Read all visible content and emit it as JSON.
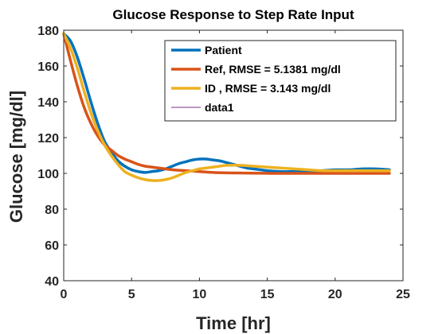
{
  "chart_data": {
    "type": "line",
    "title": "Glucose Response to Step Rate Input",
    "xlabel": "Time [hr]",
    "ylabel": "Glucose [mg/dl]",
    "xlim": [
      0,
      25
    ],
    "ylim": [
      40,
      180
    ],
    "xticks": [
      0,
      5,
      10,
      15,
      20,
      25
    ],
    "yticks": [
      40,
      60,
      80,
      100,
      120,
      140,
      160,
      180
    ],
    "grid": false,
    "legend_position": "top-right",
    "series": [
      {
        "name": "Patient",
        "color": "#0072BD",
        "width": 3.5,
        "x": [
          0,
          0.5,
          1,
          1.5,
          2,
          2.5,
          3,
          3.5,
          4,
          4.5,
          5,
          5.5,
          6,
          6.5,
          7,
          7.5,
          8,
          8.5,
          9,
          9.5,
          10,
          10.5,
          11,
          11.5,
          12,
          12.5,
          13,
          13.5,
          14,
          15,
          16,
          17,
          18,
          19,
          20,
          21,
          22,
          23,
          24
        ],
        "y": [
          178,
          174,
          165,
          153,
          140,
          128,
          118,
          112,
          107,
          104,
          102,
          101,
          100.5,
          101,
          101.5,
          102.5,
          104,
          105.5,
          106.5,
          107.5,
          108,
          108,
          107.5,
          107,
          106,
          105,
          104,
          103,
          102.5,
          101.5,
          101,
          101,
          101,
          101.5,
          102,
          102,
          102.5,
          102.5,
          102
        ]
      },
      {
        "name": "Ref, RMSE = 5.1381 mg/dl",
        "color": "#D95319",
        "width": 3.5,
        "x": [
          0,
          0.5,
          1,
          1.5,
          2,
          2.5,
          3,
          3.5,
          4,
          4.5,
          5,
          5.5,
          6,
          6.5,
          7,
          8,
          9,
          10,
          11,
          12,
          13,
          14,
          16,
          18,
          20,
          22,
          24
        ],
        "y": [
          178,
          163,
          149,
          137,
          128,
          121,
          116,
          113,
          110,
          108,
          106.5,
          105,
          104,
          103.5,
          103,
          102,
          101.5,
          101,
          100.5,
          100.3,
          100.2,
          100.1,
          100,
          100,
          100,
          100,
          100
        ]
      },
      {
        "name": "ID , RMSE = 3.143 mg/dl",
        "color": "#EDB120",
        "width": 3.5,
        "x": [
          0,
          0.5,
          1,
          1.5,
          2,
          2.5,
          3,
          3.5,
          4,
          4.5,
          5,
          5.5,
          6,
          6.5,
          7,
          7.5,
          8,
          8.5,
          9,
          9.5,
          10,
          10.5,
          11,
          11.5,
          12,
          13,
          14,
          15,
          16,
          17,
          18,
          19,
          20,
          21,
          22,
          23,
          24
        ],
        "y": [
          178,
          170,
          159,
          146,
          134,
          124,
          116,
          110,
          105,
          101,
          99,
          97.5,
          96.5,
          96,
          96,
          96.5,
          97.5,
          99,
          100.5,
          101.5,
          102.5,
          103,
          103.5,
          104,
          104.5,
          104.5,
          104,
          103.5,
          103,
          102.5,
          102,
          101.5,
          101.5,
          101.5,
          101.5,
          101.5,
          101.5
        ]
      },
      {
        "name": "data1",
        "color": "#7E2F8E",
        "width": 1,
        "x": [],
        "y": []
      }
    ]
  }
}
